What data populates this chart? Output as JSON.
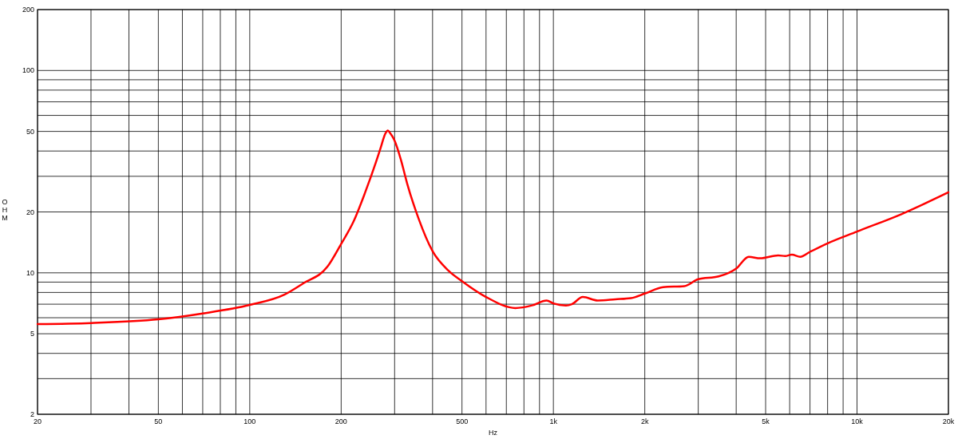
{
  "chart_data": {
    "type": "line",
    "xlabel": "Hz",
    "ylabel": "OHM",
    "log": "xy",
    "grid": true,
    "line_style": "solid",
    "xlim": [
      20,
      20000
    ],
    "ylim": [
      2,
      200
    ],
    "xticks": [
      20,
      {
        "value": 30,
        "label": null
      },
      {
        "value": 40,
        "label": null
      },
      50,
      {
        "value": 60,
        "label": null
      },
      {
        "value": 70,
        "label": null
      },
      {
        "value": 80,
        "label": null
      },
      {
        "value": 90,
        "label": null
      },
      100,
      200,
      {
        "value": 300,
        "label": null
      },
      {
        "value": 400,
        "label": null
      },
      500,
      {
        "value": 600,
        "label": null
      },
      {
        "value": 700,
        "label": null
      },
      {
        "value": 800,
        "label": null
      },
      {
        "value": 900,
        "label": null
      },
      {
        "value": 1000,
        "label": "1k"
      },
      {
        "value": 2000,
        "label": "2k"
      },
      {
        "value": 3000,
        "label": null
      },
      {
        "value": 4000,
        "label": null
      },
      {
        "value": 5000,
        "label": "5k"
      },
      {
        "value": 6000,
        "label": null
      },
      {
        "value": 7000,
        "label": null
      },
      {
        "value": 8000,
        "label": null
      },
      {
        "value": 9000,
        "label": null
      },
      {
        "value": 10000,
        "label": "10k"
      },
      {
        "value": 20000,
        "label": "20k"
      }
    ],
    "yticks": [
      2,
      {
        "value": 3,
        "label": null
      },
      {
        "value": 4,
        "label": null
      },
      5,
      {
        "value": 6,
        "label": null
      },
      {
        "value": 7,
        "label": null
      },
      {
        "value": 8,
        "label": null
      },
      {
        "value": 9,
        "label": null
      },
      10,
      20,
      {
        "value": 30,
        "label": null
      },
      {
        "value": 40,
        "label": null
      },
      50,
      {
        "value": 60,
        "label": null
      },
      {
        "value": 70,
        "label": null
      },
      {
        "value": 80,
        "label": null
      },
      {
        "value": 90,
        "label": null
      },
      100,
      200
    ],
    "series": [
      {
        "color": "#ff0000",
        "x": [
          20,
          30,
          50,
          70,
          100,
          130,
          150,
          180,
          200,
          220,
          240,
          260,
          270,
          280,
          285,
          290,
          300,
          315,
          330,
          360,
          400,
          450,
          500,
          600,
          750,
          850,
          950,
          1000,
          1100,
          1150,
          1250,
          1400,
          1600,
          1800,
          2000,
          2300,
          2700,
          3000,
          3500,
          4000,
          4400,
          4800,
          5500,
          5800,
          6100,
          6500,
          7000,
          8000,
          10000,
          14000,
          20000
        ],
        "values": [
          5.58,
          5.65,
          5.89,
          6.3,
          6.94,
          7.8,
          8.87,
          10.7,
          13.9,
          18,
          25,
          35,
          41.6,
          49,
          50.5,
          49,
          45,
          36,
          27.6,
          18.5,
          12.8,
          10.3,
          9.1,
          7.6,
          6.7,
          6.9,
          7.3,
          7.06,
          6.9,
          7.0,
          7.6,
          7.3,
          7.4,
          7.5,
          7.9,
          8.5,
          8.6,
          9.3,
          9.6,
          10.5,
          12,
          11.8,
          12.2,
          12.1,
          12.3,
          12,
          12.7,
          14,
          16,
          19.5,
          25
        ]
      }
    ]
  }
}
